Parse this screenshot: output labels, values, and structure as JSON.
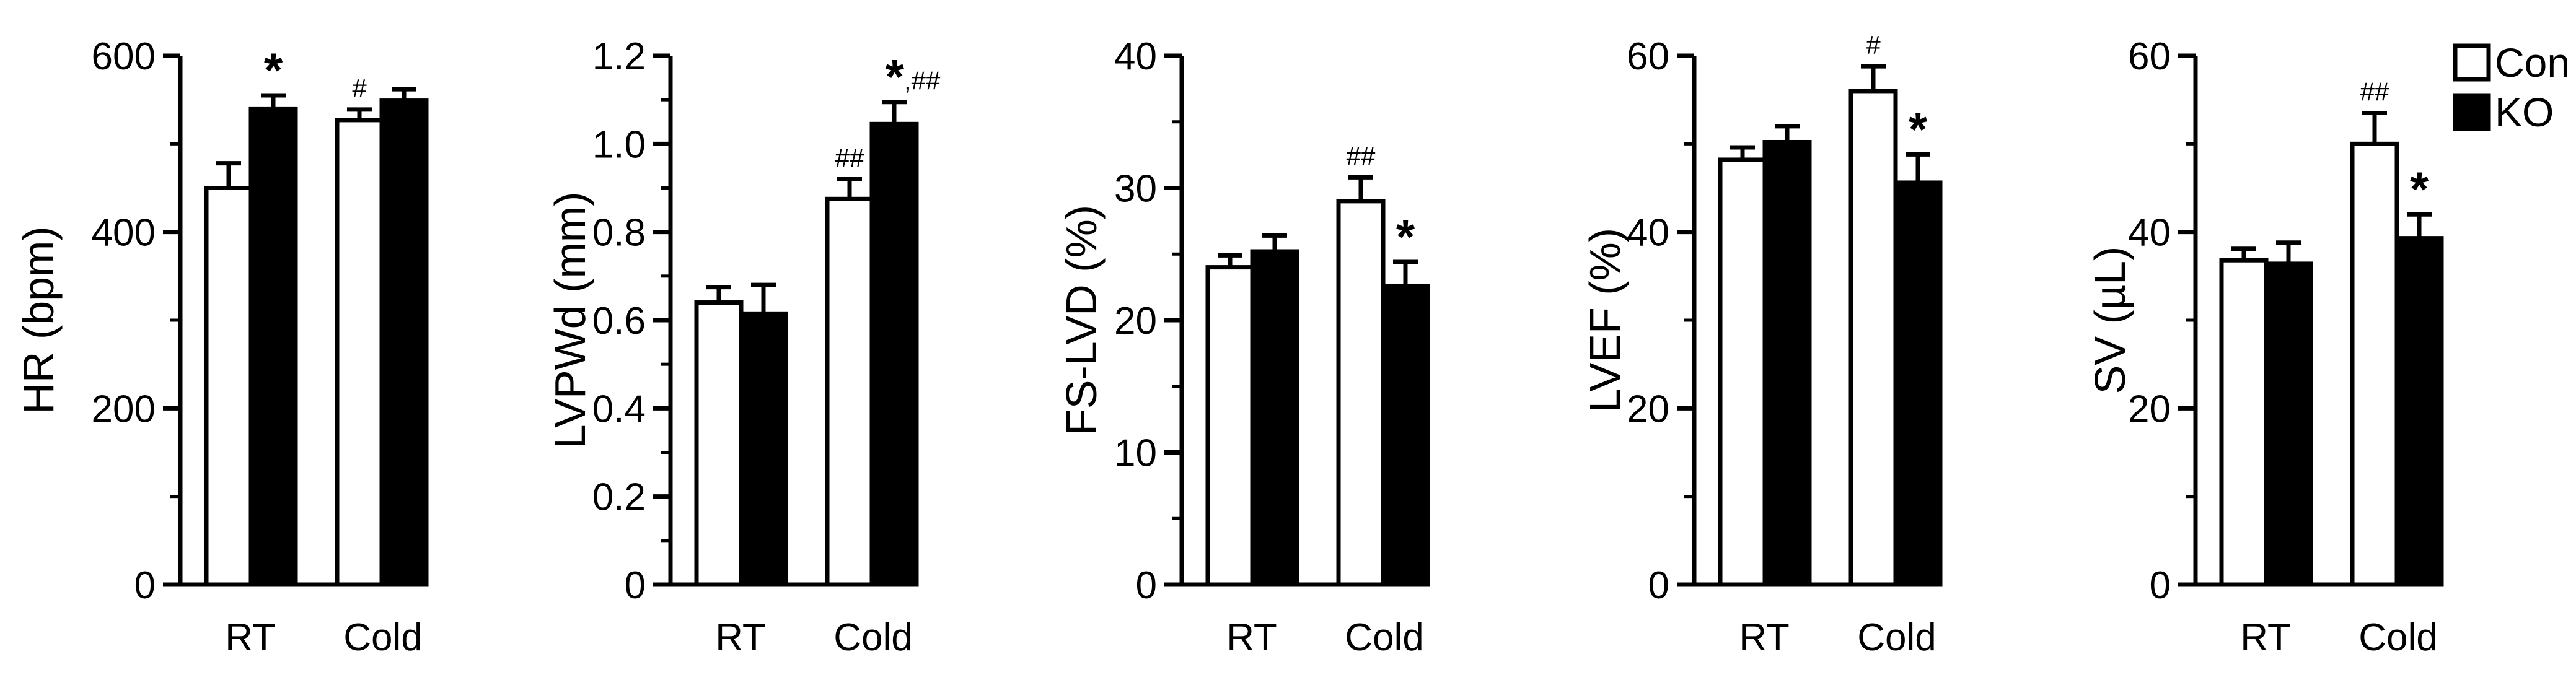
{
  "chart_data": [
    {
      "type": "bar",
      "ylabel": "HR (bpm)",
      "categories": [
        "RT",
        "Cold"
      ],
      "yticks": [
        "0",
        "200",
        "400",
        "600"
      ],
      "ylim": [
        0,
        600
      ],
      "series": [
        {
          "name": "Con",
          "values": [
            450,
            527
          ],
          "errors": [
            28,
            12
          ]
        },
        {
          "name": "KO",
          "values": [
            540,
            549
          ],
          "errors": [
            15,
            13
          ]
        }
      ],
      "annotations": [
        {
          "category": "RT",
          "series": "KO",
          "text": "*"
        },
        {
          "category": "Cold",
          "series": "Con",
          "text": "#"
        }
      ]
    },
    {
      "type": "bar",
      "ylabel": "LVPWd (mm)",
      "categories": [
        "RT",
        "Cold"
      ],
      "yticks": [
        "0",
        "0.2",
        "0.4",
        "0.6",
        "0.8",
        "1.0",
        "1.2"
      ],
      "ylim": [
        0,
        1.2
      ],
      "series": [
        {
          "name": "Con",
          "values": [
            0.64,
            0.875
          ],
          "errors": [
            0.035,
            0.045
          ]
        },
        {
          "name": "KO",
          "values": [
            0.615,
            1.045
          ],
          "errors": [
            0.065,
            0.05
          ]
        }
      ],
      "annotations": [
        {
          "category": "Cold",
          "series": "Con",
          "text": "##"
        },
        {
          "category": "Cold",
          "series": "KO",
          "text": "*,##"
        }
      ]
    },
    {
      "type": "bar",
      "ylabel": "FS-LVD (%)",
      "categories": [
        "RT",
        "Cold"
      ],
      "yticks": [
        "0",
        "10",
        "20",
        "30",
        "40"
      ],
      "ylim": [
        0,
        40
      ],
      "series": [
        {
          "name": "Con",
          "values": [
            24.0,
            29.0
          ],
          "errors": [
            0.9,
            1.8
          ]
        },
        {
          "name": "KO",
          "values": [
            25.2,
            22.6
          ],
          "errors": [
            1.2,
            1.8
          ]
        }
      ],
      "annotations": [
        {
          "category": "Cold",
          "series": "Con",
          "text": "##"
        },
        {
          "category": "Cold",
          "series": "KO",
          "text": "*"
        }
      ]
    },
    {
      "type": "bar",
      "ylabel": "LVEF (%)",
      "categories": [
        "RT",
        "Cold"
      ],
      "yticks": [
        "0",
        "20",
        "40",
        "60"
      ],
      "ylim": [
        0,
        60
      ],
      "series": [
        {
          "name": "Con",
          "values": [
            48.2,
            56.0
          ],
          "errors": [
            1.4,
            2.8
          ]
        },
        {
          "name": "KO",
          "values": [
            50.2,
            45.6
          ],
          "errors": [
            1.8,
            3.2
          ]
        }
      ],
      "annotations": [
        {
          "category": "Cold",
          "series": "Con",
          "text": "#"
        },
        {
          "category": "Cold",
          "series": "KO",
          "text": "*"
        }
      ]
    },
    {
      "type": "bar",
      "ylabel": "SV (µL)",
      "categories": [
        "RT",
        "Cold"
      ],
      "yticks": [
        "0",
        "20",
        "40",
        "60"
      ],
      "ylim": [
        0,
        60
      ],
      "series": [
        {
          "name": "Con",
          "values": [
            36.8,
            50.0
          ],
          "errors": [
            1.3,
            3.5
          ]
        },
        {
          "name": "KO",
          "values": [
            36.4,
            39.3
          ],
          "errors": [
            2.4,
            2.7
          ]
        }
      ],
      "annotations": [
        {
          "category": "Cold",
          "series": "Con",
          "text": "##"
        },
        {
          "category": "Cold",
          "series": "KO",
          "text": "*"
        }
      ]
    }
  ],
  "legend": {
    "placement": "top-right",
    "items": [
      {
        "label": "Con",
        "fill": "#ffffff"
      },
      {
        "label": "KO",
        "fill": "#000000"
      }
    ]
  },
  "colors": {
    "con": "#ffffff",
    "ko": "#000000",
    "stroke": "#000000"
  }
}
